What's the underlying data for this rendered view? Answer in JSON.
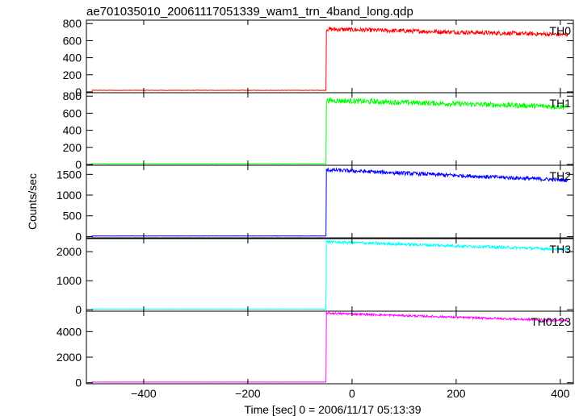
{
  "chart_data": {
    "type": "line",
    "title": "ae701035010_20061117051339_wam1_trn_4band_long.qdp",
    "xlabel": "Time [sec] 0 = 2006/11/17 05:13:39",
    "ylabel": "Counts/sec",
    "xlim": [
      -510,
      425
    ],
    "x_ticks": [
      -400,
      -200,
      0,
      200,
      400
    ],
    "x_tick_labels": [
      "−400",
      "−200",
      "0",
      "200",
      "400"
    ],
    "grid": false,
    "step_time": -50,
    "t_start": -500,
    "t_end": 415,
    "series": [
      {
        "name": "TH0",
        "color": "#ff0000",
        "ylim": [
          -10,
          840
        ],
        "yticks": [
          0,
          200,
          400,
          600,
          800
        ],
        "pre_level": 18,
        "peak_level": 735,
        "end_level": 670,
        "noise": 25
      },
      {
        "name": "TH1",
        "color": "#00ff00",
        "ylim": [
          -10,
          840
        ],
        "yticks": [
          0,
          200,
          400,
          600,
          800
        ],
        "pre_level": 8,
        "peak_level": 750,
        "end_level": 675,
        "noise": 30
      },
      {
        "name": "TH2",
        "color": "#0000ff",
        "ylim": [
          -30,
          1720
        ],
        "yticks": [
          0,
          500,
          1000,
          1500
        ],
        "pre_level": 15,
        "peak_level": 1610,
        "end_level": 1360,
        "noise": 45
      },
      {
        "name": "TH3",
        "color": "#00ffff",
        "ylim": [
          -50,
          2450
        ],
        "yticks": [
          0,
          1000,
          2000
        ],
        "pre_level": 20,
        "peak_level": 2340,
        "end_level": 2080,
        "noise": 50
      },
      {
        "name": "TH0123",
        "color": "#ff00ff",
        "ylim": [
          -80,
          5600
        ],
        "yticks": [
          0,
          2000,
          4000
        ],
        "pre_level": 50,
        "peak_level": 5450,
        "end_level": 4850,
        "noise": 80
      }
    ]
  }
}
